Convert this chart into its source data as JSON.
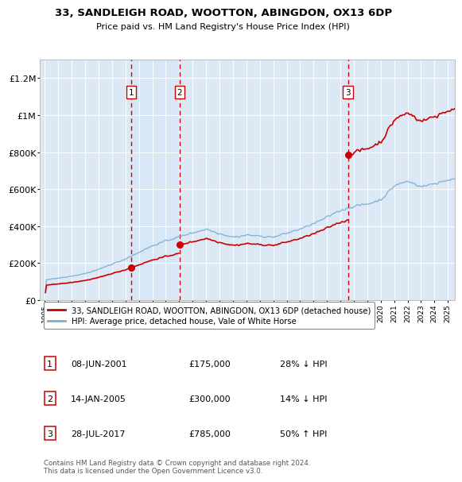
{
  "title_line1": "33, SANDLEIGH ROAD, WOOTTON, ABINGDON, OX13 6DP",
  "title_line2": "Price paid vs. HM Land Registry's House Price Index (HPI)",
  "background_color": "#ffffff",
  "plot_bg_color": "#dce9f5",
  "grid_color": "#ffffff",
  "sale_color": "#cc0000",
  "hpi_color": "#7bafd4",
  "vline_color": "#cc0000",
  "ylim": [
    0,
    1300000
  ],
  "yticks": [
    0,
    200000,
    400000,
    600000,
    800000,
    1000000,
    1200000
  ],
  "ytick_labels": [
    "£0",
    "£200K",
    "£400K",
    "£600K",
    "£800K",
    "£1M",
    "£1.2M"
  ],
  "sales": [
    {
      "date_num": 2001.44,
      "price": 175000,
      "label": "1"
    },
    {
      "date_num": 2005.04,
      "price": 300000,
      "label": "2"
    },
    {
      "date_num": 2017.57,
      "price": 785000,
      "label": "3"
    }
  ],
  "transaction_table": [
    {
      "num": "1",
      "date": "08-JUN-2001",
      "price": "£175,000",
      "pct": "28%",
      "dir": "↓",
      "ref": "HPI"
    },
    {
      "num": "2",
      "date": "14-JAN-2005",
      "price": "£300,000",
      "pct": "14%",
      "dir": "↓",
      "ref": "HPI"
    },
    {
      "num": "3",
      "date": "28-JUL-2017",
      "price": "£785,000",
      "pct": "50%",
      "dir": "↑",
      "ref": "HPI"
    }
  ],
  "legend_sale_label": "33, SANDLEIGH ROAD, WOOTTON, ABINGDON, OX13 6DP (detached house)",
  "legend_hpi_label": "HPI: Average price, detached house, Vale of White Horse",
  "footnote": "Contains HM Land Registry data © Crown copyright and database right 2024.\nThis data is licensed under the Open Government Licence v3.0.",
  "xmin": 1994.6,
  "xmax": 2025.5
}
